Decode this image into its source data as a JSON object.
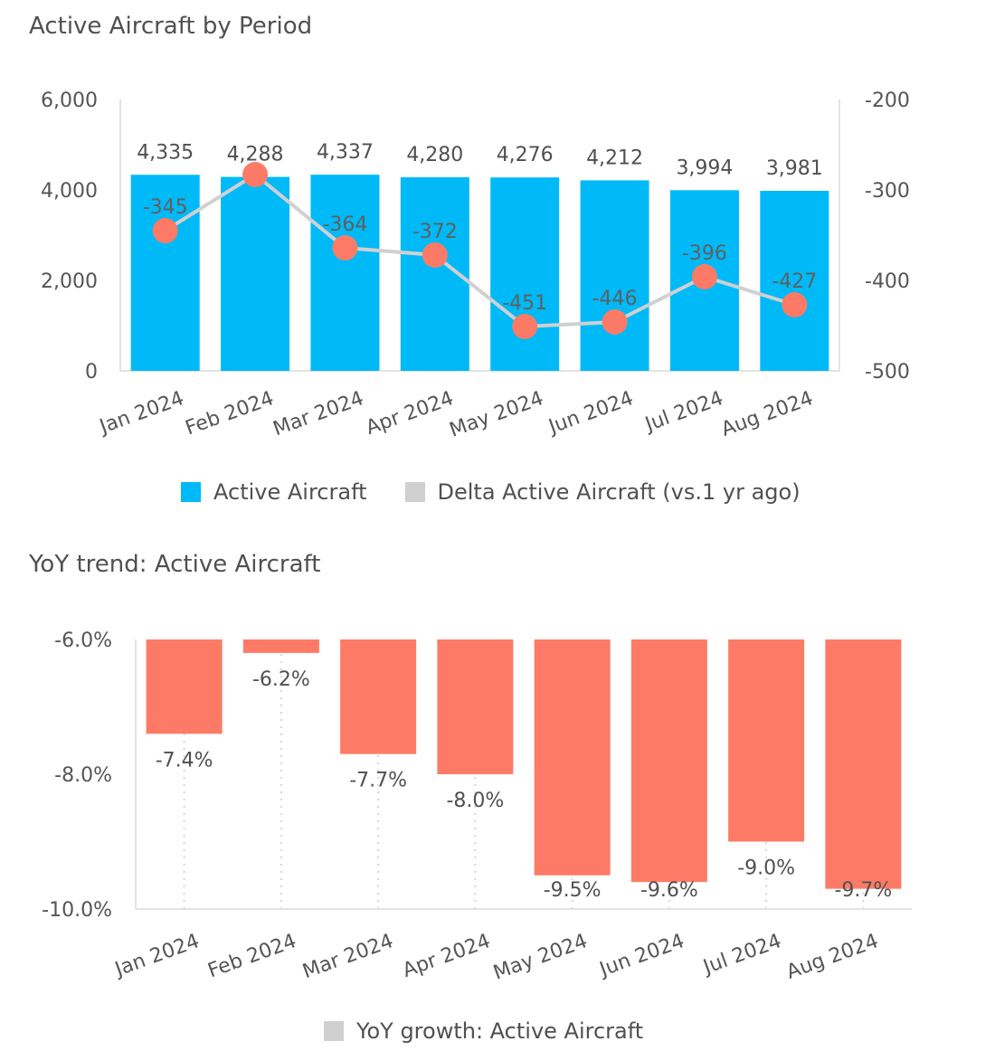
{
  "chart_data": [
    {
      "type": "bar",
      "title": "Active Aircraft by Period",
      "categories": [
        "Jan 2024",
        "Feb 2024",
        "Mar 2024",
        "Apr 2024",
        "May 2024",
        "Jun 2024",
        "Jul 2024",
        "Aug 2024"
      ],
      "series": [
        {
          "name": "Active Aircraft",
          "type": "bar",
          "axis": "left",
          "values": [
            4335,
            4288,
            4337,
            4280,
            4276,
            4212,
            3994,
            3981
          ],
          "labels": [
            "4,335",
            "4,288",
            "4,337",
            "4,280",
            "4,276",
            "4,212",
            "3,994",
            "3,981"
          ],
          "color": "#00b9f7"
        },
        {
          "name": "Delta Active Aircraft (vs.1 yr ago)",
          "type": "line",
          "axis": "right",
          "values": [
            -345,
            -283,
            -364,
            -372,
            -451,
            -446,
            -396,
            -427
          ],
          "labels": [
            "-345",
            "",
            "-364",
            "-372",
            "-451",
            "-446",
            "-396",
            "-427"
          ],
          "color": "#fd7b66",
          "line_color": "#d0d0d0"
        }
      ],
      "y_left": {
        "ylim": [
          0,
          6000
        ],
        "ticks": [
          0,
          2000,
          4000,
          6000
        ],
        "tick_labels": [
          "0",
          "2,000",
          "4,000",
          "6,000"
        ]
      },
      "y_right": {
        "ylim": [
          -500,
          -200
        ],
        "ticks": [
          -500,
          -400,
          -300,
          -200
        ],
        "tick_labels": [
          "-500",
          "-400",
          "-300",
          "-200"
        ]
      },
      "legend": {
        "position": "bottom",
        "items": [
          {
            "label": "Active Aircraft",
            "color": "#00b9f7"
          },
          {
            "label": "Delta Active Aircraft (vs.1 yr ago)",
            "color": "#d0d0d0"
          }
        ]
      },
      "grid": false
    },
    {
      "type": "bar",
      "title": "YoY trend: Active Aircraft",
      "categories": [
        "Jan 2024",
        "Feb 2024",
        "Mar 2024",
        "Apr 2024",
        "May 2024",
        "Jun 2024",
        "Jul 2024",
        "Aug 2024"
      ],
      "series": [
        {
          "name": "YoY growth: Active Aircraft",
          "values": [
            -7.4,
            -6.2,
            -7.7,
            -8.0,
            -9.5,
            -9.6,
            -9.0,
            -9.7
          ],
          "labels": [
            "-7.4%",
            "-6.2%",
            "-7.7%",
            "-8.0%",
            "-9.5%",
            "-9.6%",
            "-9.0%",
            "-9.7%"
          ],
          "color": "#fd7b66"
        }
      ],
      "ylim": [
        -10.0,
        -6.0
      ],
      "ticks": [
        -10.0,
        -8.0,
        -6.0
      ],
      "tick_labels": [
        "-10.0%",
        "-8.0%",
        "-6.0%"
      ],
      "legend": {
        "position": "bottom",
        "items": [
          {
            "label": "YoY growth: Active Aircraft",
            "color": "#d0d0d0"
          }
        ]
      },
      "grid": "vertical-dotted"
    }
  ]
}
